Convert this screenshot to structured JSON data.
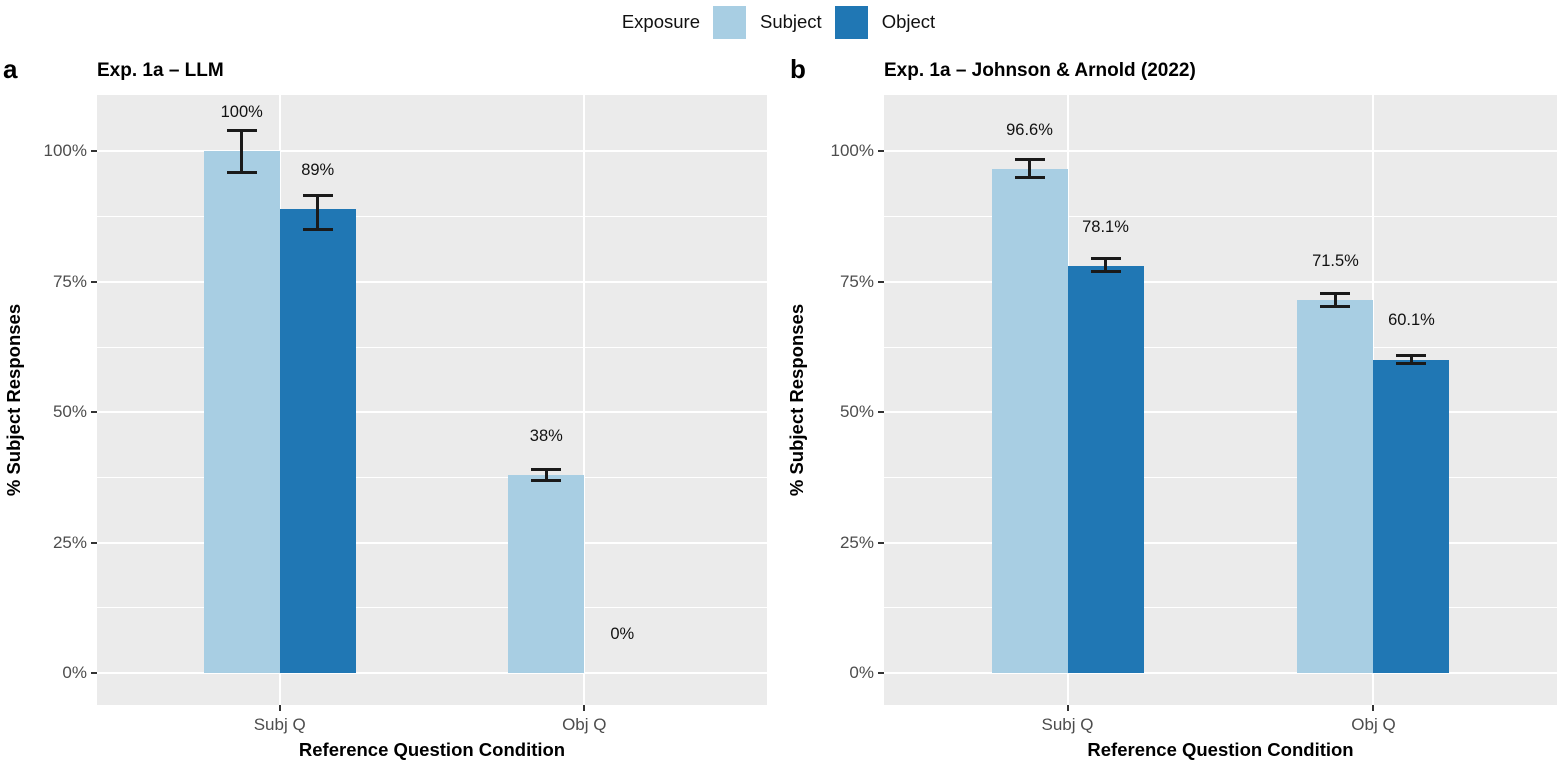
{
  "legend": {
    "title": "Exposure",
    "items": [
      {
        "label": "Subject",
        "color": "#A8CEE3"
      },
      {
        "label": "Object",
        "color": "#2077B4"
      }
    ]
  },
  "colors": {
    "panel_background": "#EBEBEB",
    "gridline": "#FFFFFF",
    "tick_label": "#4D4D4D",
    "errorbar": "#1A1A1A"
  },
  "chart_data": [
    {
      "type": "bar",
      "panel_tag": "a",
      "title": "Exp. 1a – LLM",
      "xlabel": "Reference Question Condition",
      "ylabel": "% Subject Responses",
      "categories": [
        "Subj Q",
        "Obj Q"
      ],
      "ylim": [
        -6,
        111
      ],
      "grid": "major+minor horizontal, major vertical at categories",
      "legend_position": "top",
      "y_ticks": [
        {
          "value": 0,
          "label": "0%"
        },
        {
          "value": 25,
          "label": "25%"
        },
        {
          "value": 50,
          "label": "50%"
        },
        {
          "value": 75,
          "label": "75%"
        },
        {
          "value": 100,
          "label": "100%"
        }
      ],
      "y_minor_ticks": [
        12.5,
        37.5,
        62.5,
        87.5
      ],
      "series": [
        {
          "name": "Subject",
          "color": "#A8CEE3",
          "values": [
            100,
            38
          ],
          "ci_lo": [
            96,
            36.9
          ],
          "ci_hi": [
            104,
            39.1
          ],
          "labels": [
            "100%",
            "38%"
          ]
        },
        {
          "name": "Object",
          "color": "#2077B4",
          "values": [
            89,
            0
          ],
          "ci_lo": [
            85,
            null
          ],
          "ci_hi": [
            91.5,
            null
          ],
          "labels": [
            "89%",
            "0%"
          ]
        }
      ]
    },
    {
      "type": "bar",
      "panel_tag": "b",
      "title": "Exp. 1a – Johnson & Arnold (2022)",
      "xlabel": "Reference Question Condition",
      "ylabel": "% Subject Responses",
      "categories": [
        "Subj Q",
        "Obj Q"
      ],
      "ylim": [
        -6,
        111
      ],
      "grid": "major+minor horizontal, major vertical at categories",
      "legend_position": "top",
      "y_ticks": [
        {
          "value": 0,
          "label": "0%"
        },
        {
          "value": 25,
          "label": "25%"
        },
        {
          "value": 50,
          "label": "50%"
        },
        {
          "value": 75,
          "label": "75%"
        },
        {
          "value": 100,
          "label": "100%"
        }
      ],
      "y_minor_ticks": [
        12.5,
        37.5,
        62.5,
        87.5
      ],
      "series": [
        {
          "name": "Subject",
          "color": "#A8CEE3",
          "values": [
            96.6,
            71.5
          ],
          "ci_lo": [
            95.0,
            70.3
          ],
          "ci_hi": [
            98.5,
            72.7
          ],
          "labels": [
            "96.6%",
            "71.5%"
          ]
        },
        {
          "name": "Object",
          "color": "#2077B4",
          "values": [
            78.1,
            60.1
          ],
          "ci_lo": [
            76.9,
            59.4
          ],
          "ci_hi": [
            79.5,
            60.8
          ],
          "labels": [
            "78.1%",
            "60.1%"
          ]
        }
      ]
    }
  ]
}
